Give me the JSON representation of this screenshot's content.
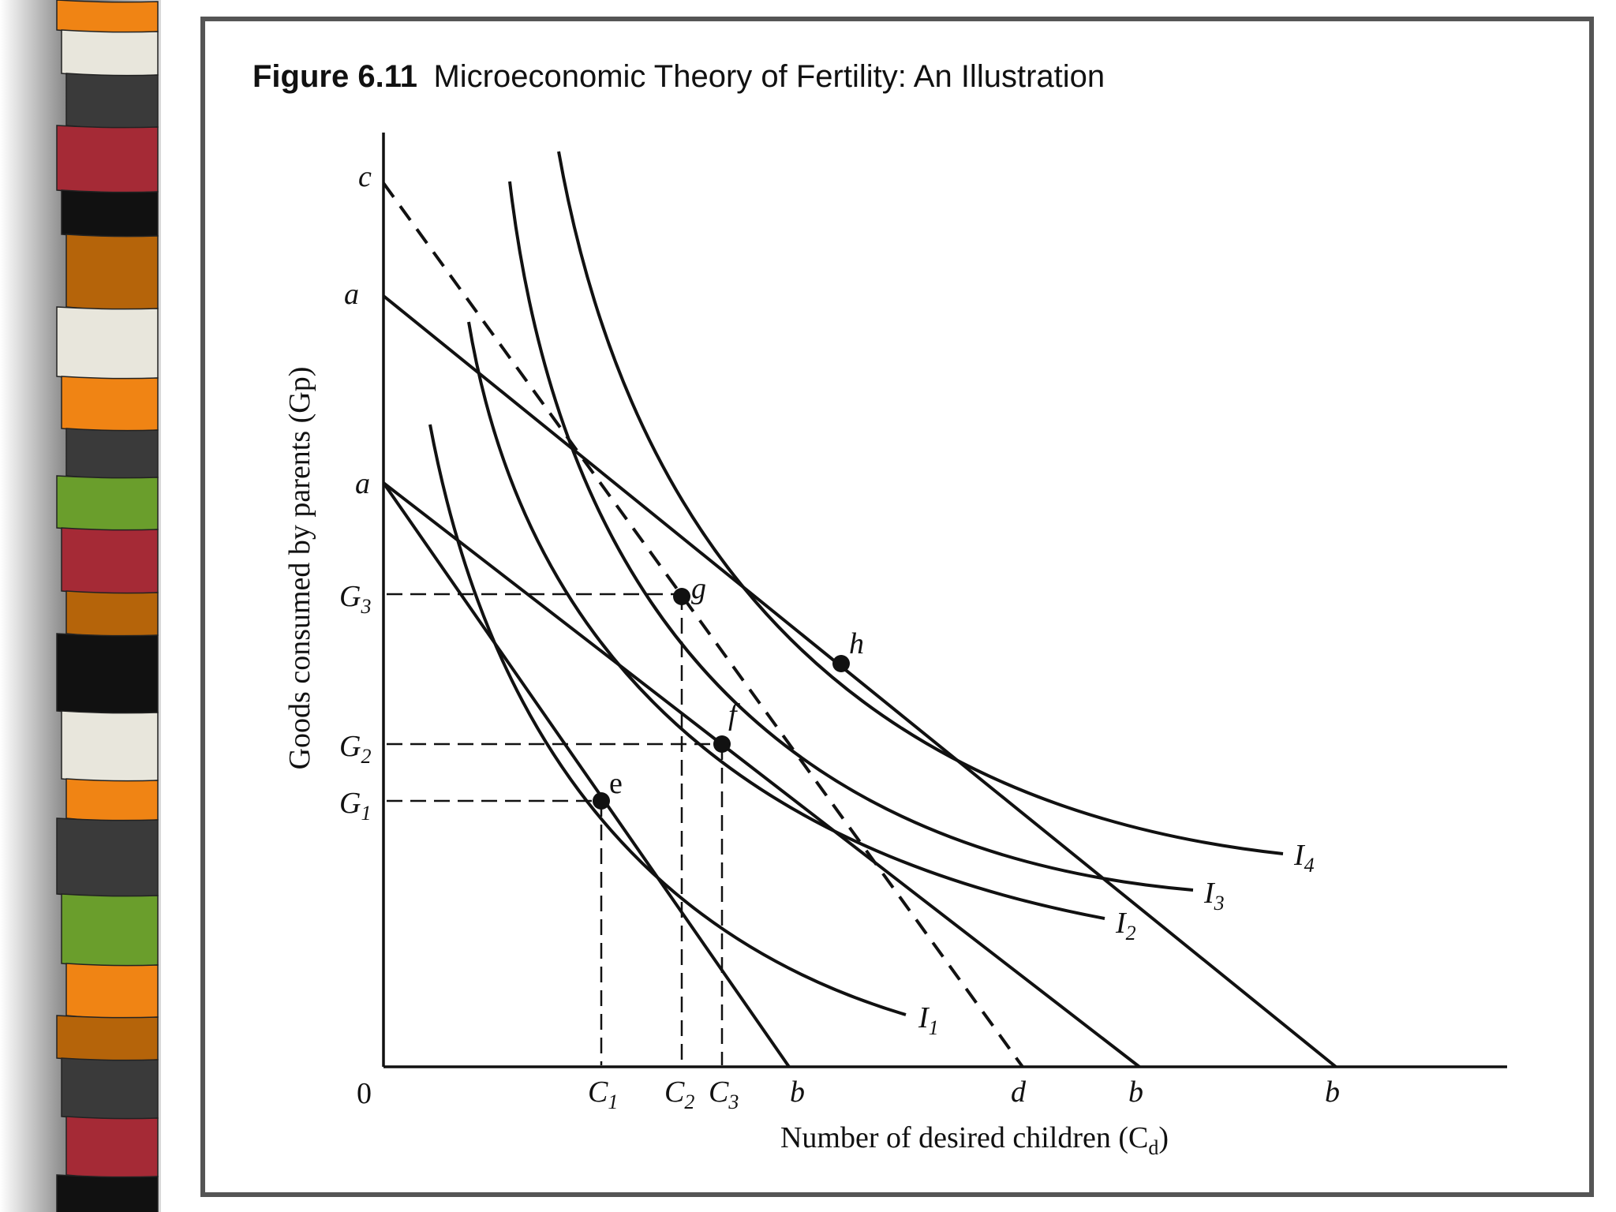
{
  "figure": {
    "number": "Figure 6.11",
    "title": "Microeconomic Theory of Fertility: An Illustration"
  },
  "axes": {
    "y_label": "Goods consumed by parents (Gp)",
    "x_label": "Number of desired children (Cd)",
    "origin": "0"
  },
  "y_ticks": [
    "c",
    "a",
    "a",
    "G3",
    "G2",
    "G1"
  ],
  "x_ticks": [
    "C1",
    "C2",
    "C3",
    "b",
    "d",
    "b",
    "b"
  ],
  "points": [
    "e",
    "f",
    "g",
    "h"
  ],
  "curves": [
    "I1",
    "I2",
    "I3",
    "I4"
  ],
  "stripe_colors": [
    "#e8e6dc",
    "#3a3a3a",
    "#a52a36",
    "#111111",
    "#b5640a",
    "#f08414",
    "#6a9e2c"
  ]
}
